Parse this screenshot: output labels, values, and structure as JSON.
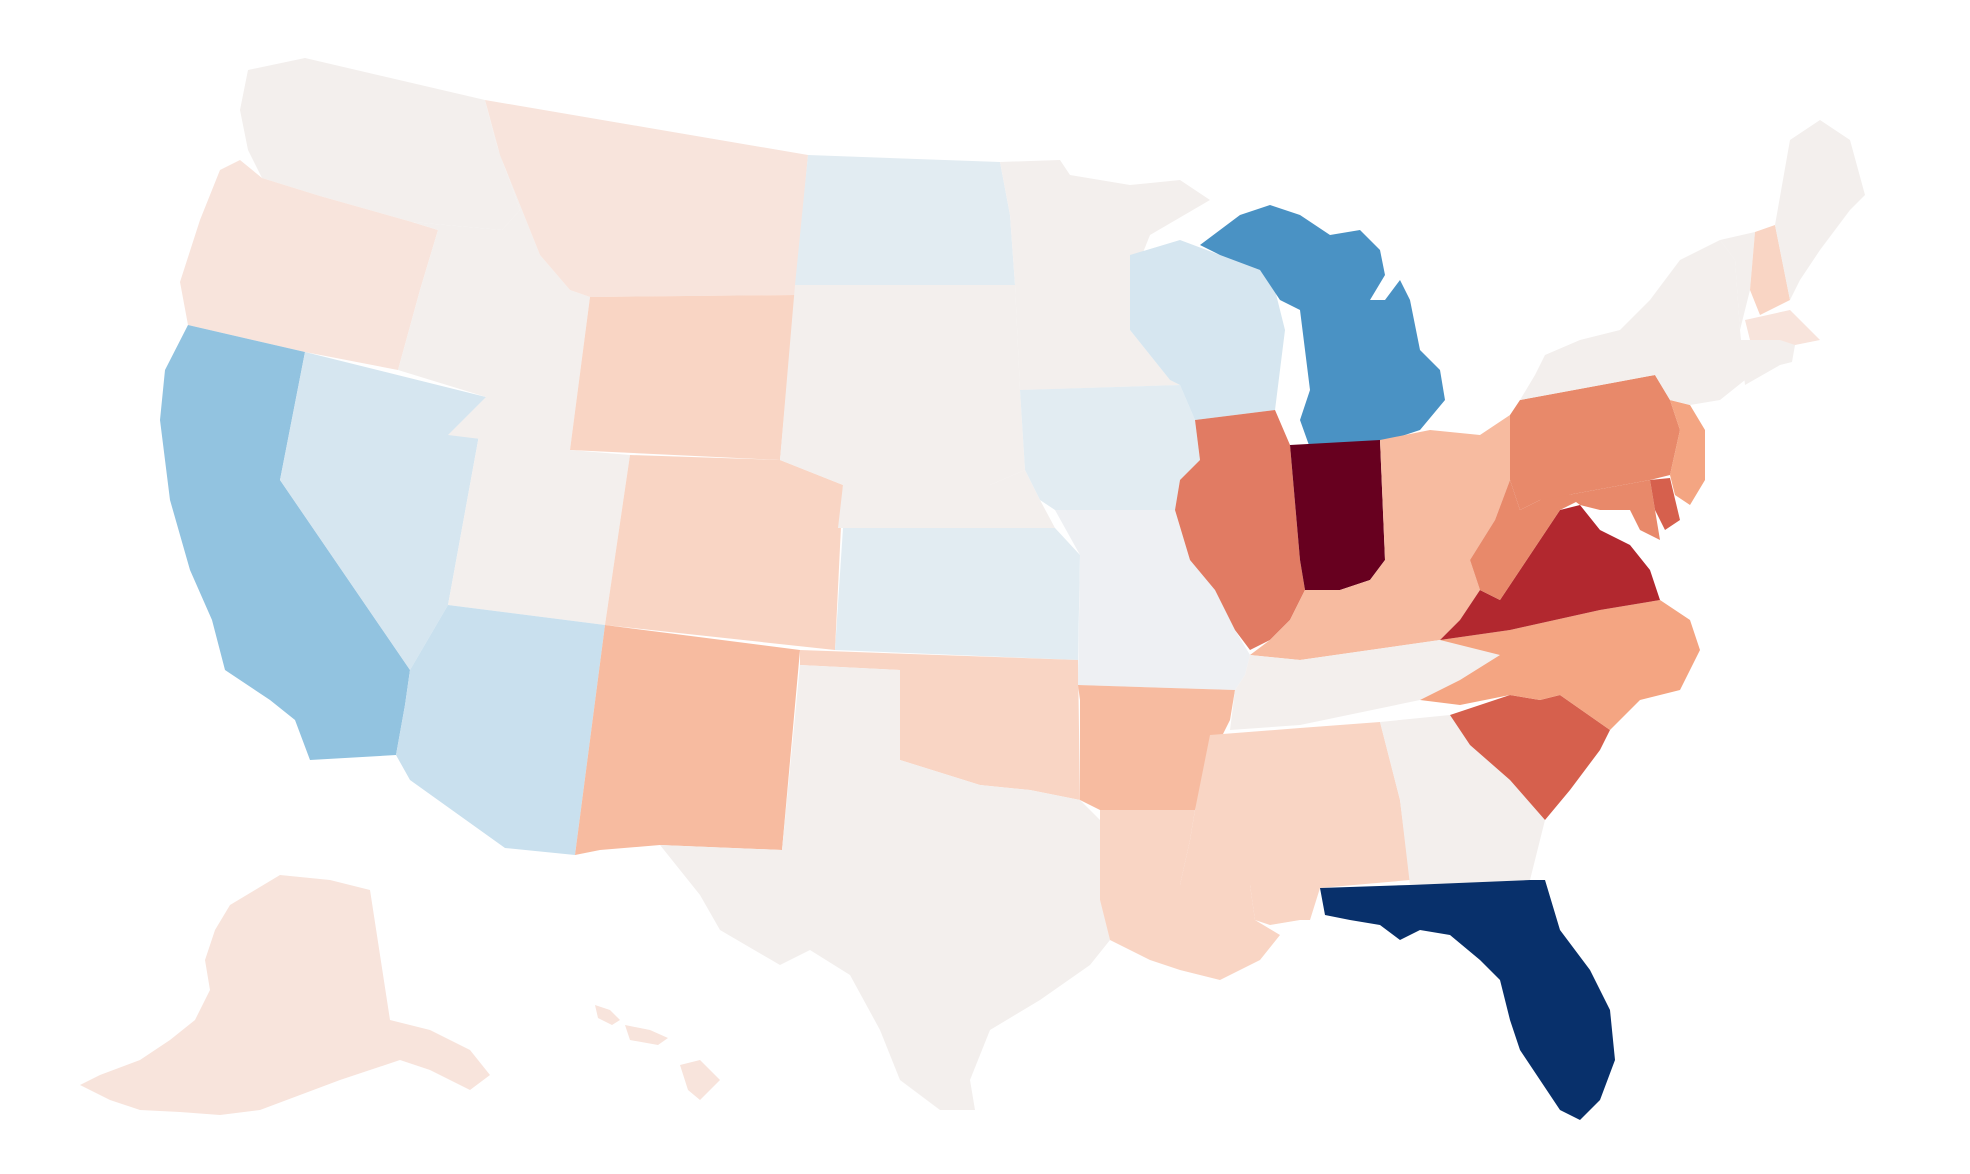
{
  "map": {
    "type": "choropleth",
    "region": "United States",
    "legend": "none",
    "palette": {
      "red_darkest": "#67001f",
      "red_dark": "#b2282f",
      "red_mid": "#d6604d",
      "red_light": "#e17b63",
      "orange": "#f4a582",
      "peach": "#f7bba0",
      "peach_light": "#f9d5c4",
      "blush": "#f8e4dc",
      "neutral": "#f3efed",
      "blue_faint": "#e2ecf2",
      "blue_light": "#d6e6f0",
      "blue_soft": "#c9e0ee",
      "blue_mid": "#92c3e0",
      "blue_dark": "#4a92c4",
      "blue_darkest": "#08306b"
    },
    "states": [
      {
        "id": "WA",
        "color": "#f3efed"
      },
      {
        "id": "OR",
        "color": "#f8e4dc"
      },
      {
        "id": "CA",
        "color": "#92c3e0"
      },
      {
        "id": "NV",
        "color": "#d6e6f0"
      },
      {
        "id": "ID",
        "color": "#f3efed"
      },
      {
        "id": "MT",
        "color": "#f8e4dc"
      },
      {
        "id": "WY",
        "color": "#f9d5c4"
      },
      {
        "id": "UT",
        "color": "#f3efed"
      },
      {
        "id": "AZ",
        "color": "#c9e0ee"
      },
      {
        "id": "CO",
        "color": "#f9d5c4"
      },
      {
        "id": "NM",
        "color": "#f7bba0"
      },
      {
        "id": "ND",
        "color": "#e2ecf2"
      },
      {
        "id": "SD",
        "color": "#f3efed"
      },
      {
        "id": "NE",
        "color": "#f3efed"
      },
      {
        "id": "KS",
        "color": "#e2ecf2"
      },
      {
        "id": "OK",
        "color": "#f9d5c4"
      },
      {
        "id": "TX",
        "color": "#f3efed"
      },
      {
        "id": "MN",
        "color": "#f3efed"
      },
      {
        "id": "IA",
        "color": "#e2ecf2"
      },
      {
        "id": "MO",
        "color": "#eef0f3"
      },
      {
        "id": "AR",
        "color": "#f7bba0"
      },
      {
        "id": "LA",
        "color": "#f9d5c4"
      },
      {
        "id": "WI",
        "color": "#d6e6f0"
      },
      {
        "id": "IL",
        "color": "#e17b63"
      },
      {
        "id": "MI",
        "color": "#4a92c4"
      },
      {
        "id": "IN",
        "color": "#67001f"
      },
      {
        "id": "OH",
        "color": "#f7bba0"
      },
      {
        "id": "KY",
        "color": "#f7bba0"
      },
      {
        "id": "TN",
        "color": "#f3efed"
      },
      {
        "id": "MS",
        "color": "#f9d5c4"
      },
      {
        "id": "AL",
        "color": "#f9d5c4"
      },
      {
        "id": "GA",
        "color": "#f3efed"
      },
      {
        "id": "FL",
        "color": "#08306b"
      },
      {
        "id": "SC",
        "color": "#d6604d"
      },
      {
        "id": "NC",
        "color": "#f4a582"
      },
      {
        "id": "VA",
        "color": "#b2282f"
      },
      {
        "id": "WV",
        "color": "#e8896a"
      },
      {
        "id": "MD",
        "color": "#e8896a"
      },
      {
        "id": "DE",
        "color": "#d6604d"
      },
      {
        "id": "NJ",
        "color": "#f4a582"
      },
      {
        "id": "PA",
        "color": "#e8896a"
      },
      {
        "id": "NY",
        "color": "#f3efed"
      },
      {
        "id": "VT",
        "color": "#f3efed"
      },
      {
        "id": "NH",
        "color": "#f9d5c4"
      },
      {
        "id": "ME",
        "color": "#f3efed"
      },
      {
        "id": "MA",
        "color": "#f8e4dc"
      },
      {
        "id": "CT",
        "color": "#f3efed"
      },
      {
        "id": "RI",
        "color": "#f3efed"
      },
      {
        "id": "AK",
        "color": "#f8e4dc"
      },
      {
        "id": "HI",
        "color": "#f8e4dc"
      }
    ]
  }
}
